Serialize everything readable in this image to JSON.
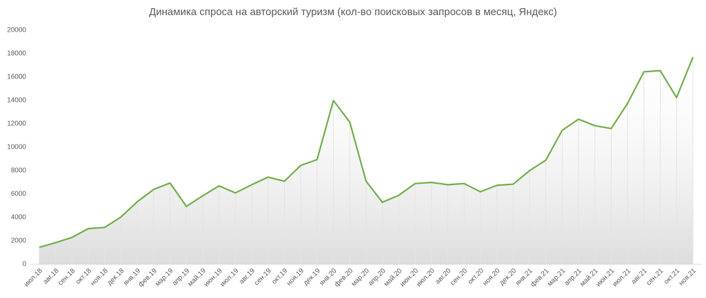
{
  "chart_data": {
    "type": "line",
    "title": "Динамика спроса на авторский туризм (кол-во поисковых запросов в месяц, Яндекс)",
    "categories": [
      "июл.18",
      "авг.18",
      "сен.18",
      "окт.18",
      "ноя.18",
      "дек.18",
      "янв.19",
      "фев.19",
      "мар.19",
      "апр.19",
      "май.19",
      "июн.19",
      "июл.19",
      "авг.19",
      "сен.19",
      "окт.19",
      "ноя.19",
      "дек.19",
      "янв.20",
      "фев.20",
      "мар.20",
      "апр.20",
      "май.20",
      "июн.20",
      "июл.20",
      "авг.20",
      "сен.20",
      "окт.20",
      "ноя.20",
      "дек.20",
      "янв.21",
      "фев.21",
      "мар.21",
      "апр.21",
      "май.21",
      "июн.21",
      "июл.21",
      "авг.21",
      "сен.21",
      "окт.21",
      "ноя.21"
    ],
    "values": [
      1450,
      1850,
      2300,
      3050,
      3150,
      4050,
      5350,
      6400,
      6950,
      4950,
      5850,
      6700,
      6100,
      6800,
      7450,
      7100,
      8450,
      8950,
      14000,
      12150,
      7100,
      5300,
      5900,
      6900,
      7000,
      6800,
      6900,
      6200,
      6750,
      6850,
      8000,
      8900,
      11450,
      12400,
      11850,
      11600,
      13750,
      16450,
      16550,
      14250,
      17700
    ],
    "color": "#70ad47",
    "ylim": [
      0,
      20000
    ],
    "yticks": [
      0,
      2000,
      4000,
      6000,
      8000,
      10000,
      12000,
      14000,
      16000,
      18000,
      20000
    ],
    "grid": false
  }
}
